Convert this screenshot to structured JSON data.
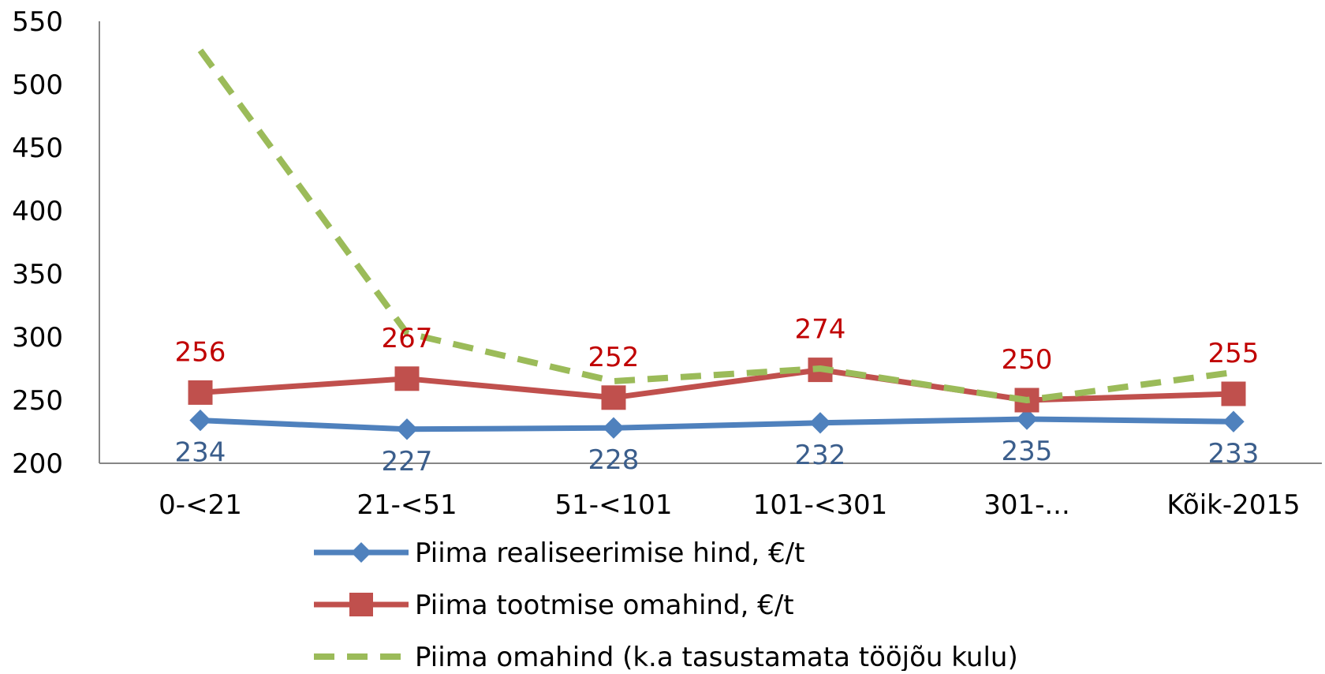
{
  "chart_data": {
    "type": "line",
    "categories": [
      "0-<21",
      "21-<51",
      "51-<101",
      "101-<301",
      "301-...",
      "Kõik-2015"
    ],
    "ylim": [
      200,
      550
    ],
    "yticks": [
      200,
      250,
      300,
      350,
      400,
      450,
      500,
      550
    ],
    "grid": false,
    "legend_position": "bottom",
    "series": [
      {
        "name": "Piima realiseerimise hind, €/t",
        "values": [
          234,
          227,
          228,
          232,
          235,
          233
        ],
        "color": "#4F81BD",
        "marker": "diamond",
        "line_style": "solid",
        "data_labels": true,
        "label_color": "#3B5E8C",
        "label_position": "below"
      },
      {
        "name": "Piima tootmise omahind, €/t",
        "values": [
          256,
          267,
          252,
          274,
          250,
          255
        ],
        "color": "#C0504D",
        "marker": "square",
        "line_style": "solid",
        "data_labels": true,
        "label_color": "#C00000",
        "label_position": "above"
      },
      {
        "name": "Piima omahind (k.a tasustamata tööjõu kulu)",
        "values": [
          527,
          303,
          265,
          275,
          250,
          272
        ],
        "color": "#9BBB59",
        "marker": "none",
        "line_style": "dashed",
        "data_labels": false
      }
    ]
  }
}
